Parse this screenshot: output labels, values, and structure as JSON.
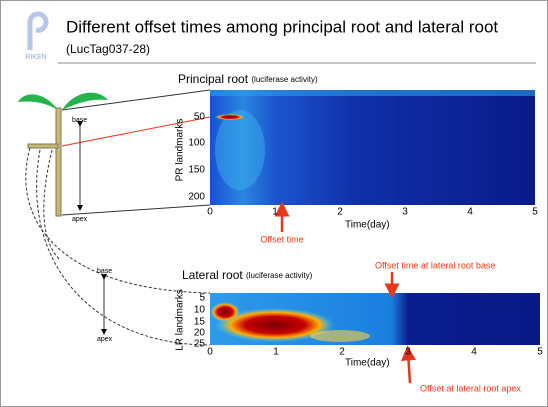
{
  "header": {
    "title": "Different offset times among principal root and lateral root",
    "subtitle": "(LucTag037-28)",
    "logo": "RIKEN"
  },
  "diagram": {
    "labels": [
      "base",
      "apex",
      "base",
      "apex"
    ]
  },
  "principal": {
    "title": "Principal root",
    "title_note": "(luciferase activity)",
    "y_label": "PR landmarks",
    "y_ticks": [
      "50",
      "100",
      "150",
      "200"
    ],
    "x_ticks": [
      "0",
      "1",
      "2",
      "3",
      "4",
      "5"
    ],
    "x_label": "Time(day)",
    "annotation": "Offset time"
  },
  "lateral": {
    "title": "Lateral root",
    "title_note": "(luciferase activity)",
    "y_label": "LR landmarks",
    "y_ticks": [
      "5",
      "10",
      "15",
      "20",
      "25"
    ],
    "x_ticks": [
      "0",
      "1",
      "2",
      "3",
      "4",
      "5"
    ],
    "x_label": "Time(day)",
    "annotation_base": "Offset time at lateral root base",
    "annotation_apex": "Offset at lateral root apex"
  }
}
